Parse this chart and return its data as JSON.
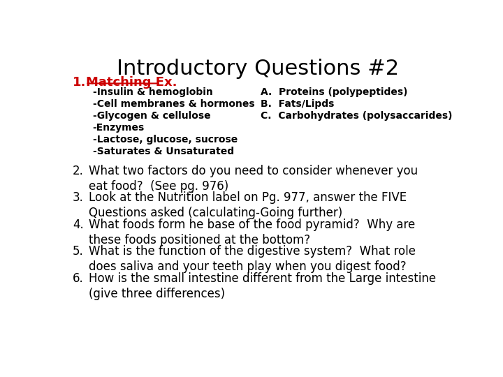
{
  "title": "Introductory Questions #2",
  "title_fontsize": 22,
  "title_color": "#000000",
  "background_color": "#ffffff",
  "item1_label": "1.",
  "item1_text": "Matching Ex.",
  "item1_color": "#cc0000",
  "left_items": [
    "-Insulin & hemoglobin",
    "-Cell membranes & hormones",
    "-Glycogen & cellulose",
    "-Enzymes",
    "-Lactose, glucose, sucrose",
    "-Saturates & Unsaturated"
  ],
  "right_items": [
    "A.  Proteins (polypeptides)",
    "B.  Fats/Lipds",
    "C.  Carbohydrates (polysaccarides)"
  ],
  "numbered_items": [
    "What two factors do you need to consider whenever you\neat food?  (See pg. 976)",
    "Look at the Nutrition label on Pg. 977, answer the FIVE\nQuestions asked (calculating-Going further)",
    "What foods form he base of the food pyramid?  Why are\nthese foods positioned at the bottom?",
    "What is the function of the digestive system?  What role\ndoes saliva and your teeth play when you digest food?",
    "How is the small intestine different from the Large intestine\n(give three differences)"
  ],
  "body_fontsize": 11,
  "small_fontsize": 10,
  "text_color": "#000000"
}
